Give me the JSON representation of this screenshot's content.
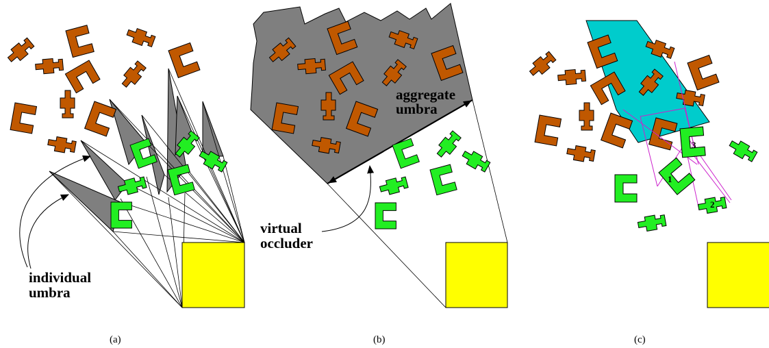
{
  "colors": {
    "occluded": "#c05800",
    "visible": "#22ee22",
    "umbra": "#7f7f7f",
    "light_source": "#ffff00",
    "cyan_region": "#00cccc",
    "link": "#cc22cc"
  },
  "panel_a": {
    "caption": "(a)",
    "label_line1": "individual",
    "label_line2": "umbra"
  },
  "panel_b": {
    "caption": "(b)",
    "aggregate_line1": "aggregate",
    "aggregate_line2": "umbra",
    "virtual_line1": "virtual",
    "virtual_line2": "occluder"
  },
  "panel_c": {
    "caption": "(c)",
    "num1": "1",
    "num2": "2",
    "num3": "3"
  }
}
